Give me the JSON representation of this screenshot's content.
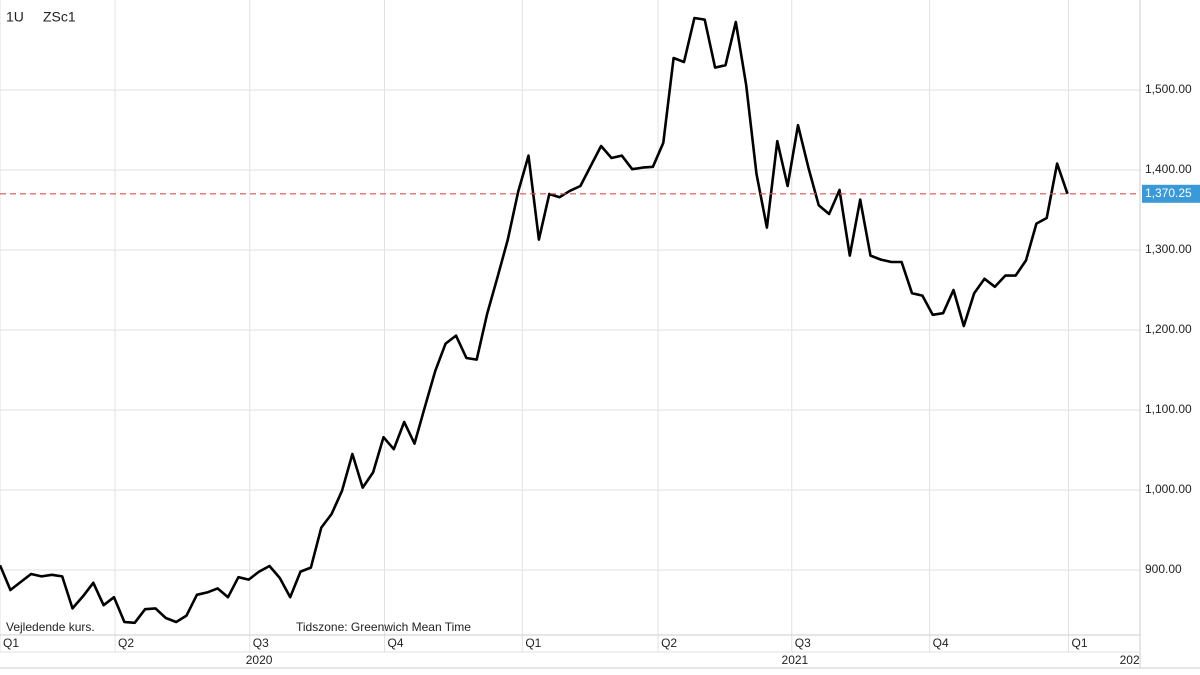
{
  "chart_data": {
    "type": "line",
    "symbol_labels": [
      "1U",
      "ZSc1"
    ],
    "footnote": "Vejledende kurs.",
    "timezone_note": "Tidszone: Greenwich Mean Time",
    "series": [
      {
        "name": "ZSc1",
        "color": "#000000",
        "values": [
          906,
          875,
          885,
          895,
          892,
          894,
          892,
          852,
          867,
          884,
          856,
          866,
          835,
          834,
          851,
          852,
          840,
          835,
          843,
          869,
          872,
          877,
          866,
          891,
          888,
          898,
          905,
          890,
          866,
          898,
          903,
          953,
          970,
          999,
          1045,
          1003,
          1022,
          1066,
          1051,
          1085,
          1058,
          1104,
          1149,
          1183,
          1193,
          1165,
          1163,
          1220,
          1266,
          1313,
          1373,
          1418,
          1313,
          1370,
          1366,
          1374,
          1380,
          1405,
          1430,
          1415,
          1418,
          1401,
          1403,
          1404,
          1434,
          1540,
          1535,
          1590,
          1588,
          1528,
          1531,
          1585,
          1506,
          1395,
          1328,
          1436,
          1380,
          1456,
          1403,
          1356,
          1345,
          1375,
          1293,
          1363,
          1293,
          1288,
          1285,
          1285,
          1246,
          1243,
          1219,
          1221,
          1250,
          1205,
          1246,
          1264,
          1254,
          1268,
          1268,
          1287,
          1333,
          1340,
          1408,
          1370.25
        ]
      }
    ],
    "last_price": {
      "value": 1370.25,
      "label": "1,370.25",
      "line_color": "#d9534f",
      "box_color": "#3a9ad9"
    },
    "xlim": [
      0,
      110
    ],
    "xticks": [
      {
        "value": 0,
        "label": "Q1"
      },
      {
        "value": 11.1,
        "label": "Q2"
      },
      {
        "value": 24.1,
        "label": "Q3"
      },
      {
        "value": 37.1,
        "label": "Q4"
      },
      {
        "value": 50.4,
        "label": "Q1"
      },
      {
        "value": 63.5,
        "label": "Q2"
      },
      {
        "value": 76.4,
        "label": "Q3"
      },
      {
        "value": 89.7,
        "label": "Q4"
      },
      {
        "value": 103.1,
        "label": "Q1"
      }
    ],
    "year_ticks": [
      {
        "value": 25,
        "label": "2020"
      },
      {
        "value": 76.7,
        "label": "2021"
      },
      {
        "value": 109,
        "label": "202"
      }
    ],
    "ylim": [
      818.75,
      1612.5
    ],
    "yticks": [
      {
        "value": 900,
        "label": "900.00"
      },
      {
        "value": 1000,
        "label": "1,000.00"
      },
      {
        "value": 1100,
        "label": "1,100.00"
      },
      {
        "value": 1200,
        "label": "1,200.00"
      },
      {
        "value": 1300,
        "label": "1,300.00"
      },
      {
        "value": 1400,
        "label": "1,400.00"
      },
      {
        "value": 1500,
        "label": "1,500.00"
      }
    ],
    "grid": true
  }
}
